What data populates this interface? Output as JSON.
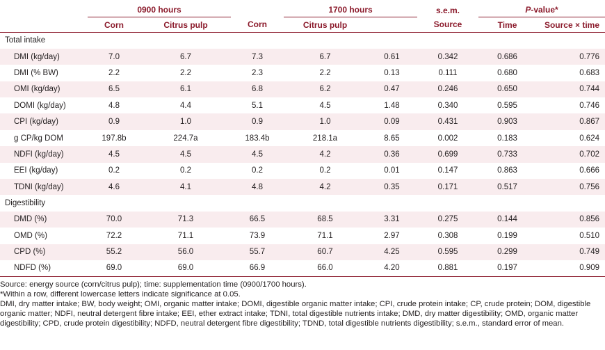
{
  "header": {
    "group_0900": "0900 hours",
    "group_1700": "1700 hours",
    "sem": "s.e.m.",
    "pvalue_italic": "P",
    "pvalue_rest": "-value*",
    "corn": "Corn",
    "citrus": "Citrus pulp",
    "source": "Source",
    "time": "Time",
    "interaction": "Source × time"
  },
  "sections": [
    {
      "title": "Total intake",
      "rows": [
        {
          "label": "DMI (kg/day)",
          "corn0900": "7.0",
          "citrus0900": "6.7",
          "corn1700": "7.3",
          "citrus1700": "6.7",
          "sem": "0.61",
          "p_source": "0.342",
          "p_time": "0.686",
          "p_interaction": "0.776"
        },
        {
          "label": "DMI (% BW)",
          "corn0900": "2.2",
          "citrus0900": "2.2",
          "corn1700": "2.3",
          "citrus1700": "2.2",
          "sem": "0.13",
          "p_source": "0.111",
          "p_time": "0.680",
          "p_interaction": "0.683"
        },
        {
          "label": "OMI (kg/day)",
          "corn0900": "6.5",
          "citrus0900": "6.1",
          "corn1700": "6.8",
          "citrus1700": "6.2",
          "sem": "0.47",
          "p_source": "0.246",
          "p_time": "0.650",
          "p_interaction": "0.744"
        },
        {
          "label": "DOMI (kg/day)",
          "corn0900": "4.8",
          "citrus0900": "4.4",
          "corn1700": "5.1",
          "citrus1700": "4.5",
          "sem": "1.48",
          "p_source": "0.340",
          "p_time": "0.595",
          "p_interaction": "0.746"
        },
        {
          "label": "CPI (kg/day)",
          "corn0900": "0.9",
          "citrus0900": "1.0",
          "corn1700": "0.9",
          "citrus1700": "1.0",
          "sem": "0.09",
          "p_source": "0.431",
          "p_time": "0.903",
          "p_interaction": "0.867"
        },
        {
          "label": "g CP/kg DOM",
          "corn0900": "197.8b",
          "citrus0900": "224.7a",
          "corn1700": "183.4b",
          "citrus1700": "218.1a",
          "sem": "8.65",
          "p_source": "0.002",
          "p_time": "0.183",
          "p_interaction": "0.624"
        },
        {
          "label": "NDFI (kg/day)",
          "corn0900": "4.5",
          "citrus0900": "4.5",
          "corn1700": "4.5",
          "citrus1700": "4.2",
          "sem": "0.36",
          "p_source": "0.699",
          "p_time": "0.733",
          "p_interaction": "0.702"
        },
        {
          "label": "EEI (kg/day)",
          "corn0900": "0.2",
          "citrus0900": "0.2",
          "corn1700": "0.2",
          "citrus1700": "0.2",
          "sem": "0.01",
          "p_source": "0.147",
          "p_time": "0.863",
          "p_interaction": "0.666"
        },
        {
          "label": "TDNI (kg/day)",
          "corn0900": "4.6",
          "citrus0900": "4.1",
          "corn1700": "4.8",
          "citrus1700": "4.2",
          "sem": "0.35",
          "p_source": "0.171",
          "p_time": "0.517",
          "p_interaction": "0.756"
        }
      ]
    },
    {
      "title": "Digestibility",
      "rows": [
        {
          "label": "DMD (%)",
          "corn0900": "70.0",
          "citrus0900": "71.3",
          "corn1700": "66.5",
          "citrus1700": "68.5",
          "sem": "3.31",
          "p_source": "0.275",
          "p_time": "0.144",
          "p_interaction": "0.856"
        },
        {
          "label": "OMD (%)",
          "corn0900": "72.2",
          "citrus0900": "71.1",
          "corn1700": "73.9",
          "citrus1700": "71.1",
          "sem": "2.97",
          "p_source": "0.308",
          "p_time": "0.199",
          "p_interaction": "0.510"
        },
        {
          "label": "CPD (%)",
          "corn0900": "55.2",
          "citrus0900": "56.0",
          "corn1700": "55.7",
          "citrus1700": "60.7",
          "sem": "4.25",
          "p_source": "0.595",
          "p_time": "0.299",
          "p_interaction": "0.749"
        },
        {
          "label": "NDFD (%)",
          "corn0900": "69.0",
          "citrus0900": "69.0",
          "corn1700": "66.9",
          "citrus1700": "66.0",
          "sem": "4.20",
          "p_source": "0.881",
          "p_time": "0.197",
          "p_interaction": "0.909"
        }
      ]
    }
  ],
  "notes": {
    "source": "Source: energy source (corn/citrus pulp); time: supplementation time (0900/1700 hours).",
    "significance": "*Within a row, different lowercase letters indicate significance at 0.05.",
    "abbreviations": "DMI, dry matter intake; BW, body weight; OMI, organic matter intake; DOMI, digestible organic matter intake; CPI, crude protein intake; CP, crude protein; DOM, digestible organic matter; NDFI, neutral detergent fibre intake; EEI, ether extract intake; TDNI, total digestible nutrients intake; DMD, dry matter digestibility; OMD, organic matter digestibility; CPD, crude protein digestibility; NDFD, neutral detergent fibre digestibility; TDND, total digestible nutrients digestibility; s.e.m., standard error of mean."
  }
}
